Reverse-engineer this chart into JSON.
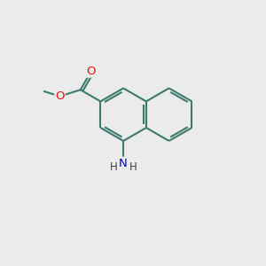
{
  "background_color": "#ebebeb",
  "bond_color": "#3d7a6e",
  "bond_width": 1.5,
  "atom_colors": {
    "O": "#ee1111",
    "N": "#0000cc",
    "C": "#000000",
    "H": "#404040"
  },
  "figure_size": [
    3.0,
    3.0
  ],
  "dpi": 100
}
